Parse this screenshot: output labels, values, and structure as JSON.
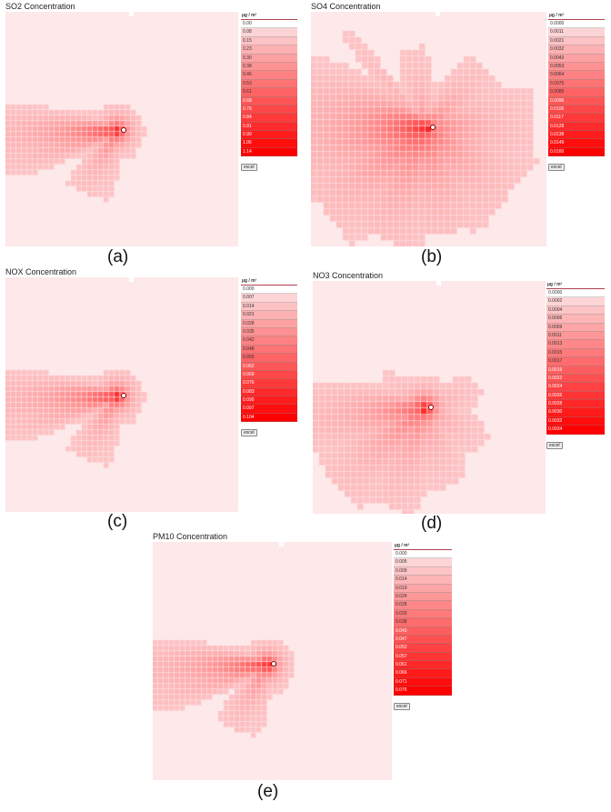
{
  "panels": [
    {
      "id": "a",
      "title": "SO2 Concentration",
      "unit": "µg / m³",
      "caption": "(a)",
      "button": "excel",
      "values": [
        "0.00",
        "0.08",
        "0.15",
        "0.23",
        "0.30",
        "0.38",
        "0.46",
        "0.53",
        "0.61",
        "0.68",
        "0.76",
        "0.84",
        "0.91",
        "0.99",
        "1.06",
        "1.14"
      ]
    },
    {
      "id": "b",
      "title": "SO4 Concentration",
      "unit": "µg / m³",
      "caption": "(b)",
      "button": "excel",
      "values": [
        "0.0000",
        "0.0011",
        "0.0021",
        "0.0032",
        "0.0043",
        "0.0053",
        "0.0064",
        "0.0075",
        "0.0085",
        "0.0096",
        "0.0106",
        "0.0117",
        "0.0128",
        "0.0138",
        "0.0149",
        "0.0160"
      ]
    },
    {
      "id": "c",
      "title": "NOX Concentration",
      "unit": "µg / m³",
      "caption": "(c)",
      "button": "excel",
      "values": [
        "0.000",
        "0.007",
        "0.014",
        "0.021",
        "0.028",
        "0.035",
        "0.042",
        "0.048",
        "0.055",
        "0.062",
        "0.069",
        "0.076",
        "0.083",
        "0.090",
        "0.097",
        "0.104"
      ]
    },
    {
      "id": "d",
      "title": "NO3 Concentration",
      "unit": "µg / m³",
      "caption": "(d)",
      "button": "excel",
      "values": [
        "0.0000",
        "0.0002",
        "0.0004",
        "0.0006",
        "0.0009",
        "0.0011",
        "0.0013",
        "0.0015",
        "0.0017",
        "0.0019",
        "0.0022",
        "0.0024",
        "0.0026",
        "0.0028",
        "0.0030",
        "0.0032",
        "0.0034"
      ]
    },
    {
      "id": "e",
      "title": "PM10 Concentration",
      "unit": "µg / m³",
      "caption": "(e)",
      "button": "excel",
      "values": [
        "0.000",
        "0.005",
        "0.009",
        "0.014",
        "0.019",
        "0.024",
        "0.028",
        "0.033",
        "0.038",
        "0.043",
        "0.047",
        "0.052",
        "0.057",
        "0.061",
        "0.066",
        "0.071",
        "0.076"
      ]
    }
  ],
  "colors": {
    "low": "#fde8ea",
    "high": "#ff0000"
  }
}
